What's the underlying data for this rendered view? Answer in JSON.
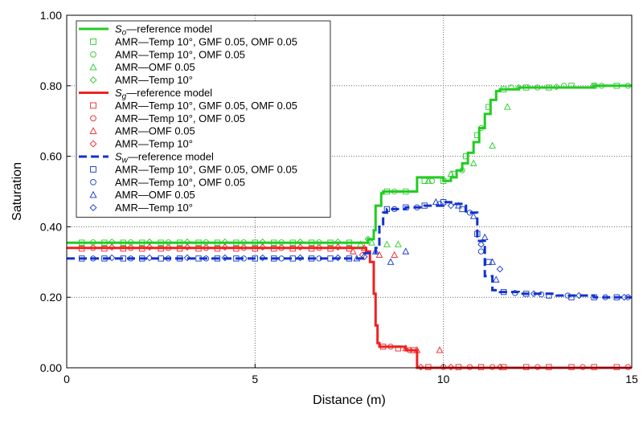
{
  "chart_data": {
    "type": "line",
    "xlabel": "Distance (m)",
    "ylabel": "Saturation",
    "xlim": [
      0,
      15
    ],
    "ylim": [
      0,
      1
    ],
    "x_ticks": [
      0,
      5,
      10,
      15
    ],
    "y_ticks": [
      0,
      0.2,
      0.4,
      0.6,
      0.8,
      1.0
    ],
    "x_tick_labels": [
      "0",
      "5",
      "10",
      "15"
    ],
    "y_tick_labels": [
      "0.00",
      "0.20",
      "0.40",
      "0.60",
      "0.80",
      "1.00"
    ],
    "grid": "dotted",
    "legend_position": "top-left",
    "legend": [
      {
        "kind": "line",
        "main": "S",
        "sub": "o",
        "rest": "—reference model",
        "color": "#22cc22",
        "dash": false
      },
      {
        "kind": "marker",
        "marker": "square",
        "label": "AMR—Temp 10°, GMF 0.05, OMF 0.05",
        "color": "#22cc22"
      },
      {
        "kind": "marker",
        "marker": "circle",
        "label": "AMR—Temp 10°, OMF 0.05",
        "color": "#22cc22"
      },
      {
        "kind": "marker",
        "marker": "triangle",
        "label": "AMR—OMF 0.05",
        "color": "#22cc22"
      },
      {
        "kind": "marker",
        "marker": "diamond",
        "label": "AMR—Temp 10°",
        "color": "#22cc22"
      },
      {
        "kind": "line",
        "main": "S",
        "sub": "g",
        "rest": "—reference model",
        "color": "#ee2222",
        "dash": false
      },
      {
        "kind": "marker",
        "marker": "square",
        "label": "AMR—Temp 10°, GMF 0.05, OMF 0.05",
        "color": "#ee2222"
      },
      {
        "kind": "marker",
        "marker": "circle",
        "label": "AMR—Temp 10°, OMF 0.05",
        "color": "#ee2222"
      },
      {
        "kind": "marker",
        "marker": "triangle",
        "label": "AMR—OMF 0.05",
        "color": "#ee2222"
      },
      {
        "kind": "marker",
        "marker": "diamond",
        "label": "AMR—Temp 10°",
        "color": "#ee2222"
      },
      {
        "kind": "line",
        "main": "S",
        "sub": "w",
        "rest": "—reference model",
        "color": "#1133cc",
        "dash": true
      },
      {
        "kind": "marker",
        "marker": "square",
        "label": "AMR—Temp 10°, GMF 0.05, OMF 0.05",
        "color": "#1133cc"
      },
      {
        "kind": "marker",
        "marker": "circle",
        "label": "AMR—Temp 10°, OMF 0.05",
        "color": "#1133cc"
      },
      {
        "kind": "marker",
        "marker": "triangle",
        "label": "AMR—OMF 0.05",
        "color": "#1133cc"
      },
      {
        "kind": "marker",
        "marker": "diamond",
        "label": "AMR—Temp 10°",
        "color": "#1133cc"
      }
    ],
    "series": [
      {
        "color": "#22cc22",
        "dash": false,
        "x": [
          0,
          7.9,
          8.0,
          8.15,
          8.2,
          8.35,
          8.4,
          9.0,
          9.2,
          9.3,
          10.0,
          10.2,
          10.35,
          10.5,
          10.65,
          10.8,
          10.95,
          11.1,
          11.25,
          11.4,
          11.5,
          12.0,
          13.0,
          14.0,
          15.0
        ],
        "y": [
          0.355,
          0.355,
          0.365,
          0.39,
          0.46,
          0.495,
          0.5,
          0.5,
          0.5,
          0.54,
          0.53,
          0.54,
          0.56,
          0.58,
          0.61,
          0.64,
          0.68,
          0.72,
          0.76,
          0.785,
          0.79,
          0.795,
          0.795,
          0.8,
          0.8
        ]
      },
      {
        "color": "#ee2222",
        "dash": false,
        "x": [
          0,
          7.8,
          7.95,
          8.05,
          8.15,
          8.2,
          8.25,
          8.3,
          9.0,
          9.2,
          9.3,
          15.0
        ],
        "y": [
          0.34,
          0.34,
          0.33,
          0.3,
          0.21,
          0.12,
          0.07,
          0.06,
          0.05,
          0.05,
          0.0,
          0.0
        ]
      },
      {
        "color": "#1133cc",
        "dash": true,
        "x": [
          0,
          7.6,
          7.9,
          8.2,
          8.3,
          8.4,
          8.5,
          9.0,
          9.5,
          10.0,
          10.3,
          10.6,
          10.9,
          11.1,
          11.3,
          11.5,
          12.0,
          13.0,
          14.0,
          15.0
        ],
        "y": [
          0.31,
          0.31,
          0.325,
          0.34,
          0.4,
          0.44,
          0.45,
          0.455,
          0.46,
          0.47,
          0.465,
          0.44,
          0.36,
          0.26,
          0.22,
          0.215,
          0.21,
          0.205,
          0.2,
          0.2
        ]
      }
    ],
    "marker_groups": [
      {
        "color": "#22cc22",
        "marker": "square",
        "x": [
          0.4,
          1.0,
          1.5,
          2.0,
          2.5,
          3.0,
          3.5,
          4.0,
          4.5,
          5.0,
          5.5,
          6.0,
          6.5,
          7.0,
          7.5,
          8.5,
          9.0,
          9.5,
          10.0,
          10.3,
          10.6,
          10.9,
          11.2,
          11.6,
          12.2,
          12.8,
          13.4,
          14.0,
          14.6
        ],
        "y": [
          0.355,
          0.355,
          0.355,
          0.355,
          0.355,
          0.355,
          0.355,
          0.355,
          0.355,
          0.355,
          0.355,
          0.355,
          0.355,
          0.355,
          0.355,
          0.5,
          0.5,
          0.53,
          0.53,
          0.55,
          0.6,
          0.66,
          0.74,
          0.79,
          0.795,
          0.795,
          0.8,
          0.8,
          0.8
        ]
      },
      {
        "color": "#22cc22",
        "marker": "circle",
        "x": [
          0.7,
          1.7,
          2.7,
          3.7,
          4.7,
          5.7,
          6.7,
          8.7,
          9.7,
          10.5,
          11.0,
          11.8,
          12.5,
          13.2,
          14.2,
          14.9
        ],
        "y": [
          0.356,
          0.356,
          0.356,
          0.356,
          0.356,
          0.356,
          0.356,
          0.5,
          0.53,
          0.56,
          0.68,
          0.795,
          0.795,
          0.8,
          0.8,
          0.8
        ]
      },
      {
        "color": "#22cc22",
        "marker": "triangle",
        "x": [
          7.8,
          8.1,
          8.5,
          8.8,
          9.6,
          10.2,
          10.8,
          11.3,
          11.7
        ],
        "y": [
          0.35,
          0.355,
          0.35,
          0.35,
          0.53,
          0.55,
          0.58,
          0.63,
          0.74
        ]
      },
      {
        "color": "#22cc22",
        "marker": "diamond",
        "x": [
          1.2,
          2.2,
          3.2,
          4.2,
          5.2,
          6.2,
          7.2,
          8.0,
          12.0,
          13.0,
          14.0
        ],
        "y": [
          0.357,
          0.357,
          0.357,
          0.357,
          0.357,
          0.357,
          0.357,
          0.365,
          0.795,
          0.797,
          0.8
        ]
      },
      {
        "color": "#ee2222",
        "marker": "square",
        "x": [
          0.4,
          1.0,
          1.5,
          2.0,
          2.5,
          3.0,
          3.5,
          4.0,
          4.5,
          5.0,
          5.5,
          6.0,
          6.5,
          7.0,
          7.5,
          8.4,
          8.8,
          9.2,
          9.6,
          10.4,
          11.0,
          11.6,
          12.2,
          12.8,
          13.4,
          14.0,
          14.6
        ],
        "y": [
          0.338,
          0.338,
          0.338,
          0.338,
          0.338,
          0.338,
          0.338,
          0.338,
          0.338,
          0.338,
          0.338,
          0.338,
          0.338,
          0.338,
          0.338,
          0.06,
          0.055,
          0.05,
          0.002,
          0.002,
          0.002,
          0.002,
          0.002,
          0.002,
          0.002,
          0.002,
          0.002
        ]
      },
      {
        "color": "#ee2222",
        "marker": "circle",
        "x": [
          0.7,
          1.7,
          2.7,
          3.7,
          4.7,
          5.7,
          6.7,
          8.6,
          9.1,
          10.0,
          10.7,
          11.3,
          12.5,
          13.7,
          14.9
        ],
        "y": [
          0.34,
          0.34,
          0.34,
          0.34,
          0.34,
          0.34,
          0.34,
          0.06,
          0.05,
          0.002,
          0.002,
          0.002,
          0.002,
          0.002,
          0.002
        ]
      },
      {
        "color": "#ee2222",
        "marker": "triangle",
        "x": [
          7.6,
          7.9,
          8.3,
          8.7,
          9.0,
          9.3,
          9.9
        ],
        "y": [
          0.33,
          0.34,
          0.32,
          0.32,
          0.055,
          0.05,
          0.05
        ]
      },
      {
        "color": "#ee2222",
        "marker": "diamond",
        "x": [
          1.2,
          2.2,
          3.2,
          4.2,
          5.2,
          6.2,
          7.2,
          7.85,
          9.4,
          10.2,
          11.5
        ],
        "y": [
          0.342,
          0.342,
          0.342,
          0.342,
          0.342,
          0.342,
          0.342,
          0.32,
          0.002,
          0.002,
          0.002
        ]
      },
      {
        "color": "#1133cc",
        "marker": "square",
        "x": [
          0.4,
          1.0,
          1.5,
          2.0,
          2.5,
          3.0,
          3.5,
          4.0,
          4.5,
          5.0,
          5.5,
          6.0,
          6.5,
          7.0,
          7.5,
          8.5,
          9.0,
          9.5,
          10.0,
          10.5,
          10.9,
          11.2,
          11.6,
          12.2,
          12.8,
          13.4,
          14.0,
          14.6
        ],
        "y": [
          0.31,
          0.31,
          0.31,
          0.31,
          0.31,
          0.31,
          0.31,
          0.31,
          0.31,
          0.31,
          0.31,
          0.31,
          0.31,
          0.31,
          0.31,
          0.45,
          0.455,
          0.46,
          0.47,
          0.45,
          0.38,
          0.3,
          0.215,
          0.21,
          0.205,
          0.2,
          0.2,
          0.2
        ]
      },
      {
        "color": "#1133cc",
        "marker": "circle",
        "x": [
          0.7,
          1.7,
          2.7,
          3.7,
          4.7,
          5.7,
          6.7,
          8.7,
          9.3,
          9.9,
          10.7,
          11.0,
          11.9,
          12.6,
          13.3,
          14.3,
          14.9
        ],
        "y": [
          0.31,
          0.31,
          0.31,
          0.31,
          0.31,
          0.31,
          0.31,
          0.45,
          0.455,
          0.465,
          0.44,
          0.33,
          0.212,
          0.208,
          0.205,
          0.2,
          0.2
        ]
      },
      {
        "color": "#1133cc",
        "marker": "triangle",
        "x": [
          7.7,
          8.2,
          8.6,
          9.0,
          9.8,
          10.4,
          10.8,
          11.1,
          11.3,
          11.4
        ],
        "y": [
          0.31,
          0.33,
          0.3,
          0.33,
          0.47,
          0.46,
          0.43,
          0.37,
          0.3,
          0.25
        ]
      },
      {
        "color": "#1133cc",
        "marker": "diamond",
        "x": [
          1.2,
          2.2,
          3.2,
          4.2,
          5.2,
          6.2,
          7.2,
          7.9,
          10.2,
          11.0,
          11.5,
          12.4,
          13.6,
          14.8
        ],
        "y": [
          0.312,
          0.312,
          0.312,
          0.312,
          0.312,
          0.312,
          0.312,
          0.315,
          0.46,
          0.35,
          0.28,
          0.21,
          0.205,
          0.2
        ]
      }
    ]
  }
}
